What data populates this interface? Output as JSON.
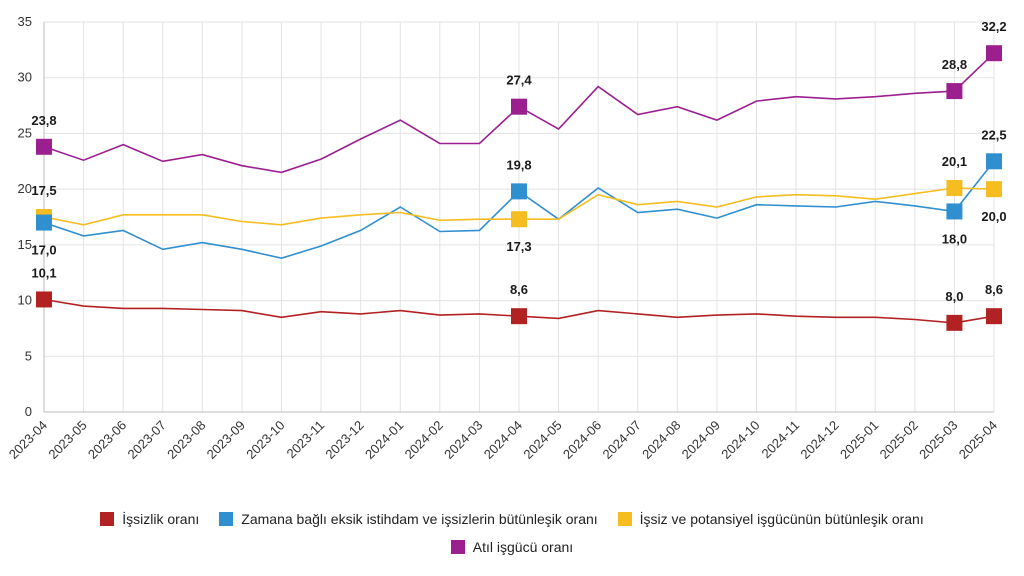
{
  "chart_data": {
    "type": "line",
    "x": [
      "2023-04",
      "2023-05",
      "2023-06",
      "2023-07",
      "2023-08",
      "2023-09",
      "2023-10",
      "2023-11",
      "2023-12",
      "2024-01",
      "2024-02",
      "2024-03",
      "2024-04",
      "2024-05",
      "2024-06",
      "2024-07",
      "2024-08",
      "2024-09",
      "2024-10",
      "2024-11",
      "2024-12",
      "2025-01",
      "2025-02",
      "2025-03",
      "2025-04"
    ],
    "ylim": [
      0,
      35
    ],
    "yticks": [
      0,
      5,
      10,
      15,
      20,
      25,
      30,
      35
    ],
    "grid": true,
    "legend_position": "bottom",
    "series": [
      {
        "name": "İşsizlik oranı",
        "color": "#b22222",
        "values": [
          10.1,
          9.5,
          9.3,
          9.3,
          9.2,
          9.1,
          8.5,
          9.0,
          8.8,
          9.1,
          8.7,
          8.8,
          8.6,
          8.4,
          9.1,
          8.8,
          8.5,
          8.7,
          8.8,
          8.6,
          8.5,
          8.5,
          8.3,
          8.0,
          8.6
        ],
        "labels": [
          {
            "x": "2023-04",
            "text": "10,1"
          },
          {
            "x": "2024-04",
            "text": "8,6"
          },
          {
            "x": "2025-03",
            "text": "8,0"
          },
          {
            "x": "2025-04",
            "text": "8,6"
          }
        ]
      },
      {
        "name": "Zamana bağlı eksik istihdam ve işsizlerin bütünleşik oranı",
        "color": "#2f8fcf",
        "values": [
          17.0,
          15.8,
          16.3,
          14.6,
          15.2,
          14.6,
          13.8,
          14.9,
          16.3,
          18.4,
          16.2,
          16.3,
          19.8,
          17.3,
          20.1,
          17.9,
          18.2,
          17.4,
          18.6,
          18.5,
          18.4,
          18.9,
          18.5,
          18.0,
          22.5
        ],
        "labels": [
          {
            "x": "2023-04",
            "text": "17,0"
          },
          {
            "x": "2024-04",
            "text": "19,8"
          },
          {
            "x": "2025-03",
            "text": "18,0"
          },
          {
            "x": "2025-04",
            "text": "22,5"
          }
        ]
      },
      {
        "name": "İşsiz ve potansiyel işgücünün bütünleşik oranı",
        "color": "#f5bd1f",
        "values": [
          17.5,
          16.8,
          17.7,
          17.7,
          17.7,
          17.1,
          16.8,
          17.4,
          17.7,
          17.9,
          17.2,
          17.3,
          17.3,
          17.3,
          19.5,
          18.6,
          18.9,
          18.4,
          19.3,
          19.5,
          19.4,
          19.1,
          19.6,
          20.1,
          20.0
        ],
        "labels": [
          {
            "x": "2023-04",
            "text": "17,5"
          },
          {
            "x": "2024-04",
            "text": "17,3"
          },
          {
            "x": "2025-03",
            "text": "20,1"
          },
          {
            "x": "2025-04",
            "text": "20,0"
          }
        ]
      },
      {
        "name": "Atıl işgücü oranı",
        "color": "#9b1f8e",
        "values": [
          23.8,
          22.6,
          24.0,
          22.5,
          23.1,
          22.1,
          21.5,
          22.7,
          24.5,
          26.2,
          24.1,
          24.1,
          27.4,
          25.4,
          29.2,
          26.7,
          27.4,
          26.2,
          27.9,
          28.3,
          28.1,
          28.3,
          28.6,
          28.8,
          32.2
        ],
        "labels": [
          {
            "x": "2023-04",
            "text": "23,8"
          },
          {
            "x": "2024-04",
            "text": "27,4"
          },
          {
            "x": "2025-03",
            "text": "28,8"
          },
          {
            "x": "2025-04",
            "text": "32,2"
          }
        ]
      }
    ]
  }
}
